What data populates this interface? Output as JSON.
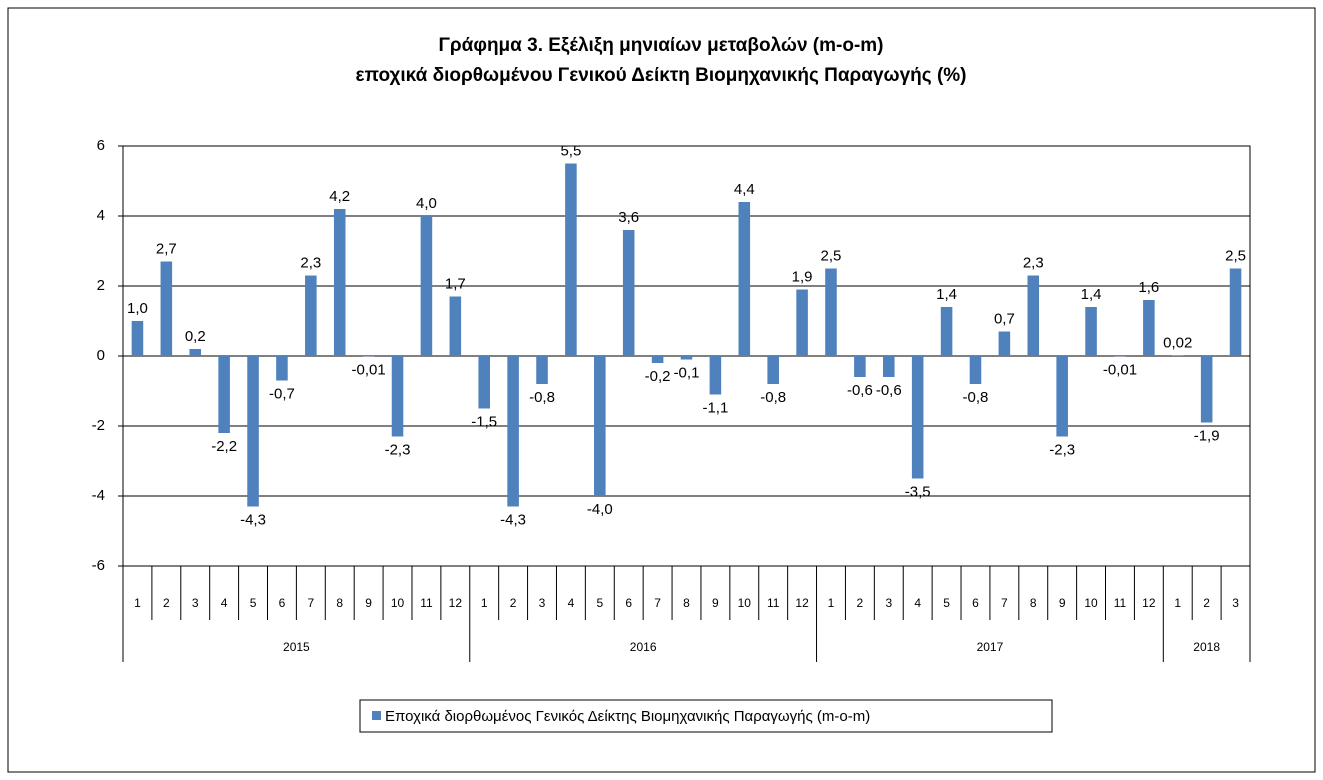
{
  "chart_data": {
    "type": "bar",
    "title": [
      "Γράφημα 3. Εξέλιξη μηνιαίων μεταβολών (m-o-m)",
      "εποχικά διορθωμένου Γενικού Δείκτη Βιομηχανικής Παραγωγής (%)"
    ],
    "categories": [
      "1",
      "2",
      "3",
      "4",
      "5",
      "6",
      "7",
      "8",
      "9",
      "10",
      "11",
      "12",
      "1",
      "2",
      "3",
      "4",
      "5",
      "6",
      "7",
      "8",
      "9",
      "10",
      "11",
      "12",
      "1",
      "2",
      "3",
      "4",
      "5",
      "6",
      "7",
      "8",
      "9",
      "10",
      "11",
      "12",
      "1",
      "2",
      "3"
    ],
    "category_groups": [
      {
        "name": "2015",
        "size": 12
      },
      {
        "name": "2016",
        "size": 12
      },
      {
        "name": "2017",
        "size": 12
      },
      {
        "name": "2018",
        "size": 3
      }
    ],
    "series": [
      {
        "name": "Εποχικά διορθωμένος Γενικός Δείκτης Βιομηχανικής Παραγωγής (m-o-m)",
        "color": "#4f81bd",
        "values": [
          1.0,
          2.7,
          0.2,
          -2.2,
          -4.3,
          -0.7,
          2.3,
          4.2,
          -0.01,
          -2.3,
          4.0,
          1.7,
          -1.5,
          -4.3,
          -0.8,
          5.5,
          -4.0,
          3.6,
          -0.2,
          -0.1,
          -1.1,
          4.4,
          -0.8,
          1.9,
          2.5,
          -0.6,
          -0.6,
          -3.5,
          1.4,
          -0.8,
          0.7,
          2.3,
          -2.3,
          1.4,
          -0.01,
          1.6,
          0.02,
          -1.9,
          2.5
        ],
        "value_labels": [
          "1,0",
          "2,7",
          "0,2",
          "-2,2",
          "-4,3",
          "-0,7",
          "2,3",
          "4,2",
          "-0,01",
          "-2,3",
          "4,0",
          "1,7",
          "-1,5",
          "-4,3",
          "-0,8",
          "5,5",
          "-4,0",
          "3,6",
          "-0,2",
          "-0,1",
          "-1,1",
          "4,4",
          "-0,8",
          "1,9",
          "2,5",
          "-0,6",
          "-0,6",
          "-3,5",
          "1,4",
          "-0,8",
          "0,7",
          "2,3",
          "-2,3",
          "1,4",
          "-0,01",
          "1,6",
          "0,02",
          "-1,9",
          "2,5"
        ]
      }
    ],
    "ylim": [
      -6,
      6
    ],
    "yticks": [
      -6,
      -4,
      -2,
      0,
      2,
      4,
      6
    ],
    "grid": true,
    "legend": "bottom"
  }
}
